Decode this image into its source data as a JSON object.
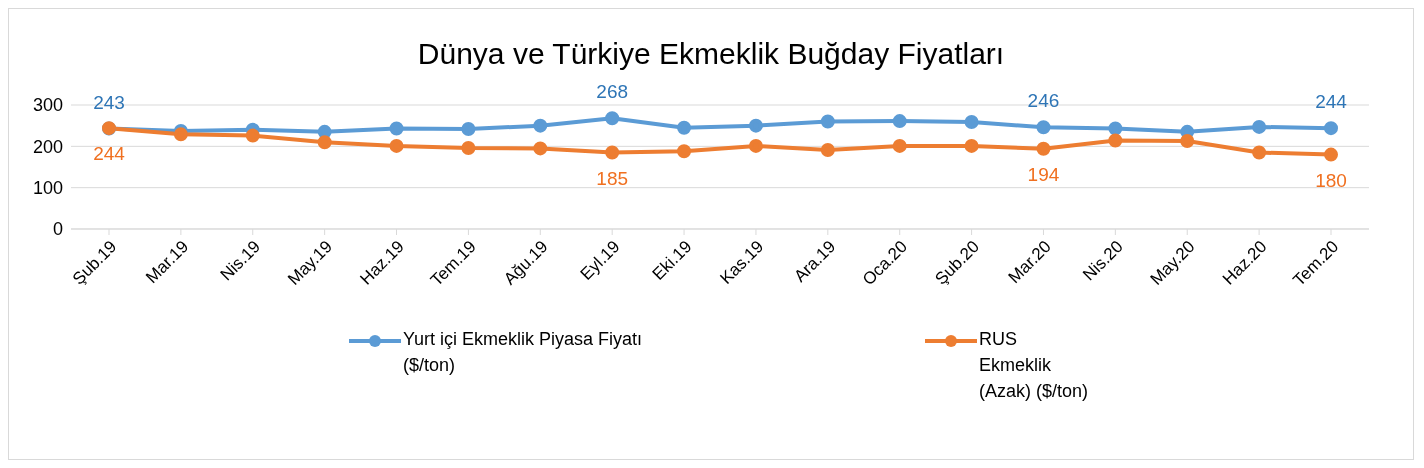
{
  "chart_data": {
    "type": "line",
    "title": "Dünya ve Türkiye Ekmeklik Buğday Fiyatları",
    "categories": [
      "Şub.19",
      "Mar.19",
      "Nis.19",
      "May.19",
      "Haz.19",
      "Tem.19",
      "Ağu.19",
      "Eyl.19",
      "Eki.19",
      "Kas.19",
      "Ara.19",
      "Oca.20",
      "Şub.20",
      "Mar.20",
      "Nis.20",
      "May.20",
      "Haz.20",
      "Tem.20"
    ],
    "series": [
      {
        "name": "Yurt içi Ekmeklik Piyasa Fiyatı ($/ton)",
        "color": "#5b9bd5",
        "values": [
          243,
          237,
          240,
          235,
          243,
          242,
          250,
          268,
          245,
          250,
          260,
          261,
          259,
          246,
          243,
          235,
          247,
          244
        ],
        "value_labels": [
          "243",
          null,
          null,
          null,
          null,
          null,
          null,
          "268",
          null,
          null,
          null,
          null,
          null,
          "246",
          null,
          null,
          null,
          "244"
        ]
      },
      {
        "name": "RUS Ekmeklik (Azak) ($/ton)",
        "color": "#ed7d31",
        "values": [
          244,
          229,
          226,
          210,
          201,
          196,
          195,
          185,
          188,
          201,
          191,
          201,
          201,
          194,
          214,
          213,
          185,
          180
        ],
        "value_labels": [
          "244",
          null,
          null,
          null,
          null,
          null,
          null,
          "185",
          null,
          null,
          null,
          null,
          null,
          "194",
          null,
          null,
          null,
          "180"
        ]
      }
    ],
    "ylim": [
      0,
      300
    ],
    "yticks": [
      0,
      100,
      200,
      300
    ],
    "grid": "y",
    "legend": "bottom",
    "marker": "circle",
    "line_style": "solid"
  }
}
